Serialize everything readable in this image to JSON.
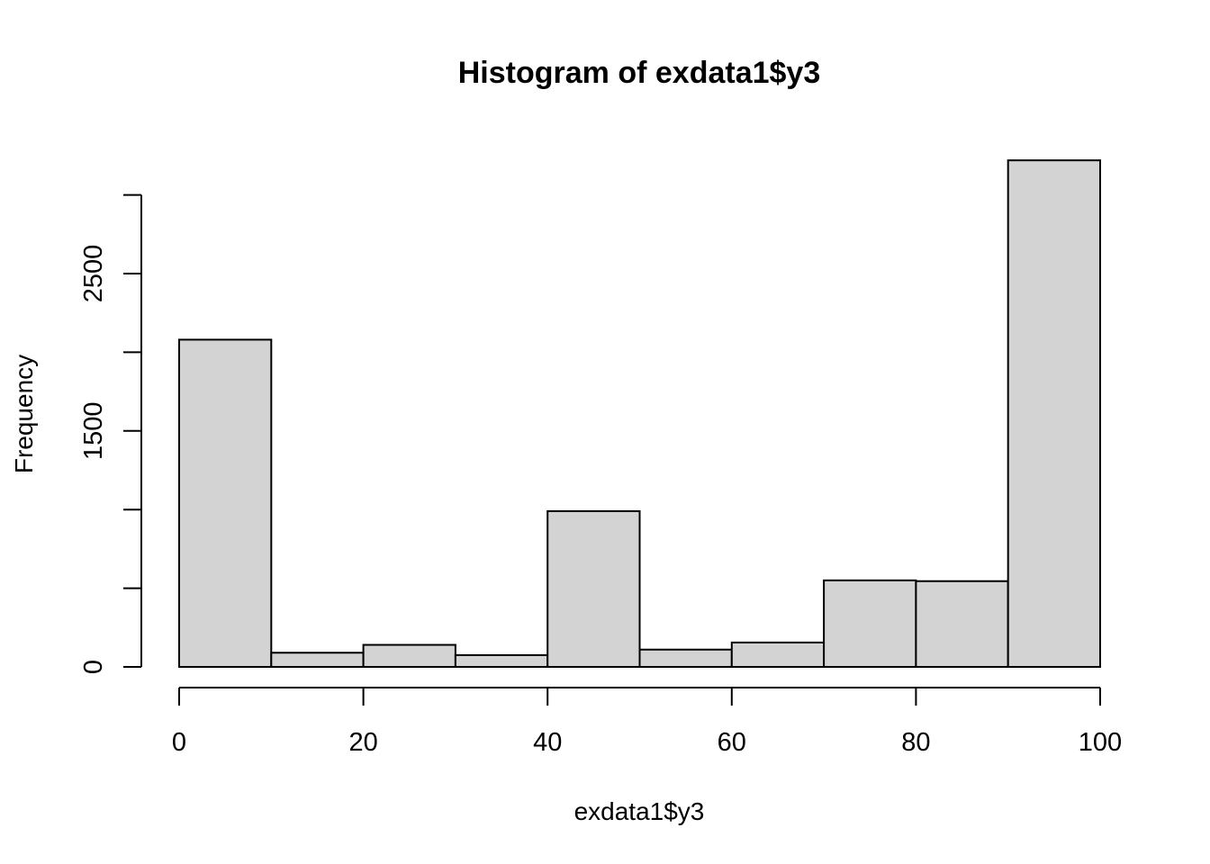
{
  "chart_data": {
    "type": "bar",
    "title": "Histogram of exdata1$y3",
    "xlabel": "exdata1$y3",
    "ylabel": "Frequency",
    "bins": [
      {
        "start": 0,
        "end": 10,
        "count": 2080
      },
      {
        "start": 10,
        "end": 20,
        "count": 90
      },
      {
        "start": 20,
        "end": 30,
        "count": 140
      },
      {
        "start": 30,
        "end": 40,
        "count": 75
      },
      {
        "start": 40,
        "end": 50,
        "count": 990
      },
      {
        "start": 50,
        "end": 60,
        "count": 110
      },
      {
        "start": 60,
        "end": 70,
        "count": 155
      },
      {
        "start": 70,
        "end": 80,
        "count": 550
      },
      {
        "start": 80,
        "end": 90,
        "count": 545
      },
      {
        "start": 90,
        "end": 100,
        "count": 3220
      }
    ],
    "xlim": [
      0,
      100
    ],
    "ylim": [
      0,
      3000
    ],
    "x_ticks": [
      0,
      20,
      40,
      60,
      80,
      100
    ],
    "y_ticks": [
      0,
      500,
      1000,
      1500,
      2000,
      2500,
      3000
    ],
    "y_tick_labels": [
      "0",
      "",
      "",
      "1500",
      "",
      "2500",
      ""
    ],
    "x_tick_labels": [
      "0",
      "20",
      "40",
      "60",
      "80",
      "100"
    ],
    "bar_color": "#d3d3d3",
    "border_color": "#000000",
    "grid": false
  }
}
